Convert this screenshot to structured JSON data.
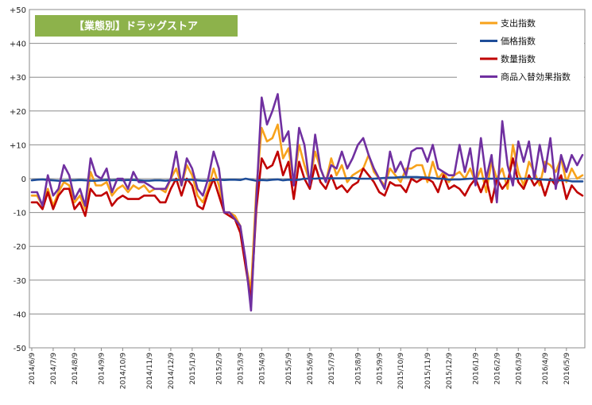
{
  "chart_data": {
    "type": "line",
    "title": "【業態別】ドラッグストア",
    "title_bg": "#8db24b",
    "title_fg": "#ffffff",
    "xlabel": "",
    "ylabel": "",
    "ylim": [
      -50,
      50
    ],
    "yticks": [
      -50,
      -40,
      -30,
      -20,
      -10,
      0,
      10,
      20,
      30,
      40,
      50
    ],
    "ytick_labels": [
      "-50",
      "-40",
      "-30",
      "-20",
      "-10",
      "0",
      "+10",
      "+20",
      "+30",
      "+40",
      "+50"
    ],
    "grid": true,
    "legend_position": "top-right",
    "n_points": 104,
    "x_ticks": [
      {
        "index": 0,
        "label": "2014/6/9"
      },
      {
        "index": 4,
        "label": "2014/7/9"
      },
      {
        "index": 8,
        "label": "2014/8/9"
      },
      {
        "index": 13,
        "label": "2014/9/9"
      },
      {
        "index": 17,
        "label": "2014/10/9"
      },
      {
        "index": 22,
        "label": "2014/11/9"
      },
      {
        "index": 26,
        "label": "2014/12/9"
      },
      {
        "index": 30,
        "label": "2015/1/9"
      },
      {
        "index": 35,
        "label": "2015/2/9"
      },
      {
        "index": 39,
        "label": "2015/3/9"
      },
      {
        "index": 43,
        "label": "2015/4/9"
      },
      {
        "index": 48,
        "label": "2015/5/9"
      },
      {
        "index": 52,
        "label": "2015/6/9"
      },
      {
        "index": 56,
        "label": "2015/7/9"
      },
      {
        "index": 61,
        "label": "2015/8/9"
      },
      {
        "index": 65,
        "label": "2015/9/9"
      },
      {
        "index": 69,
        "label": "2015/10/9"
      },
      {
        "index": 74,
        "label": "2015/11/9"
      },
      {
        "index": 78,
        "label": "2015/12/9"
      },
      {
        "index": 83,
        "label": "2016/1/9"
      },
      {
        "index": 87,
        "label": "2016/2/9"
      },
      {
        "index": 91,
        "label": "2016/3/9"
      },
      {
        "index": 96,
        "label": "2016/4/9"
      },
      {
        "index": 100,
        "label": "2016/5/9"
      }
    ],
    "series": [
      {
        "name": "支出指数",
        "color": "#f7a21b",
        "values": [
          -5,
          -5,
          -8,
          -3,
          -8,
          -4,
          -1,
          -2,
          -7,
          -5,
          -9,
          2,
          -2,
          -2,
          -1,
          -5,
          -3,
          -2,
          -4,
          -2,
          -3,
          -2,
          -4,
          -3,
          -3,
          -4,
          0,
          3,
          -2,
          4,
          1,
          -5,
          -7,
          -3,
          3,
          -2,
          -10,
          -10,
          -11,
          -14,
          -25,
          -33,
          -3,
          15,
          11,
          12,
          16,
          6,
          9,
          -1,
          10,
          4,
          -1,
          8,
          3,
          -1,
          6,
          1,
          4,
          -1,
          1,
          2,
          3,
          7,
          2,
          0,
          -2,
          3,
          1,
          -1,
          3,
          3,
          4,
          4,
          -1,
          5,
          0,
          2,
          -1,
          1,
          2,
          0,
          3,
          -1,
          3,
          -4,
          5,
          0,
          3,
          -3,
          10,
          2,
          -2,
          5,
          2,
          -2,
          5,
          4,
          2,
          6,
          -1,
          3,
          0,
          1
        ]
      },
      {
        "name": "価格指数",
        "color": "#1f4e99",
        "values": [
          -0.5,
          -0.3,
          -0.2,
          -0.4,
          -0.5,
          -0.6,
          -0.6,
          -0.5,
          -0.5,
          -0.4,
          -0.5,
          -0.6,
          -0.6,
          -0.5,
          -0.4,
          -0.5,
          -0.4,
          -0.5,
          -0.4,
          -0.4,
          -0.5,
          -0.6,
          -0.6,
          -0.5,
          -0.5,
          -0.6,
          -0.5,
          -0.4,
          -0.3,
          -0.3,
          -0.3,
          -0.5,
          -0.6,
          -0.6,
          -0.4,
          -0.3,
          -0.4,
          -0.3,
          -0.3,
          -0.4,
          0,
          -0.3,
          -0.6,
          -0.4,
          -0.5,
          -0.3,
          -0.2,
          -0.5,
          -0.3,
          -0.4,
          -0.3,
          0,
          0,
          0,
          0.1,
          0.1,
          0.1,
          0.1,
          0.1,
          0.1,
          0.2,
          0,
          0,
          0,
          0,
          0.1,
          0.2,
          0.3,
          0.3,
          0.5,
          0.5,
          0.5,
          0.5,
          0.4,
          0.3,
          0.2,
          0,
          0,
          -0.3,
          -0.2,
          -0.2,
          -0.1,
          0,
          0,
          0,
          0,
          0,
          0,
          0,
          0,
          0,
          0,
          0,
          0,
          0,
          -0.2,
          -0.3,
          -0.4,
          -0.5,
          -0.5,
          -0.5,
          -0.8,
          -0.8,
          -0.8
        ]
      },
      {
        "name": "数量指数",
        "color": "#c00000",
        "values": [
          -7,
          -7,
          -9,
          -4,
          -9,
          -5,
          -3,
          -3,
          -9,
          -7,
          -11,
          -3,
          -5,
          -5,
          -4,
          -8,
          -6,
          -5,
          -6,
          -6,
          -6,
          -5,
          -5,
          -5,
          -7,
          -7,
          -3,
          0,
          -5,
          0,
          -2,
          -8,
          -9,
          -4,
          0,
          -5,
          -10,
          -11,
          -12,
          -16,
          -26,
          -36,
          -9,
          6,
          3,
          4,
          8,
          1,
          5,
          -6,
          5,
          0,
          -3,
          4,
          -1,
          -3,
          1,
          -3,
          -2,
          -4,
          -2,
          -1,
          3,
          1,
          -1,
          -4,
          -5,
          -1,
          -2,
          -2,
          -4,
          0,
          -1,
          0,
          0,
          -1,
          -4,
          1,
          -3,
          -2,
          -3,
          -5,
          -2,
          0,
          -4,
          0,
          -7,
          0,
          -3,
          -1,
          6,
          -1,
          -3,
          1,
          -2,
          0,
          -5,
          0,
          -2,
          1,
          -6,
          -2,
          -4,
          -5
        ]
      },
      {
        "name": "商品入替効果指数",
        "color": "#7030a0",
        "values": [
          -4,
          -4,
          -8,
          1,
          -5,
          -3,
          4,
          1,
          -6,
          -3,
          -8,
          6,
          1,
          0,
          3,
          -4,
          0,
          0,
          -3,
          2,
          -1,
          -1,
          -2,
          -3,
          -3,
          -3,
          0,
          8,
          -2,
          6,
          3,
          -3,
          -5,
          0,
          8,
          3,
          -10,
          -10,
          -12,
          -14,
          -24,
          -39,
          -6,
          24,
          16,
          20,
          25,
          11,
          14,
          -2,
          15,
          10,
          -2,
          13,
          3,
          -1,
          4,
          3,
          8,
          3,
          6,
          10,
          12,
          7,
          3,
          0,
          -3,
          8,
          2,
          5,
          1,
          8,
          9,
          9,
          5,
          10,
          3,
          2,
          1,
          1,
          10,
          2,
          9,
          -2,
          12,
          0,
          7,
          -7,
          17,
          4,
          -2,
          11,
          5,
          11,
          0,
          10,
          2,
          12,
          -3,
          7,
          2,
          7,
          4,
          7
        ]
      }
    ]
  }
}
